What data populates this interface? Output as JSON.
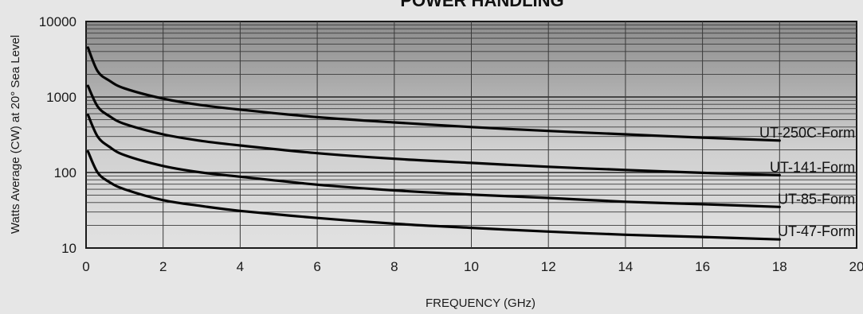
{
  "chart_data": {
    "type": "line",
    "title": "POWER HANDLING",
    "xlabel": "FREQUENCY (GHz)",
    "ylabel": "Watts Average (CW) at 20° Sea Level",
    "xlim": [
      0,
      20
    ],
    "ylim": [
      10,
      10000
    ],
    "yscale": "log",
    "x_ticks": [
      0,
      2,
      4,
      6,
      8,
      10,
      12,
      14,
      16,
      18,
      20
    ],
    "y_ticks": [
      10,
      100,
      1000,
      10000
    ],
    "grid": true,
    "series": [
      {
        "name": "UT-250C-Form",
        "x": [
          0.05,
          0.3,
          0.6,
          1,
          2,
          3,
          4,
          6,
          8,
          10,
          12,
          14,
          16,
          18
        ],
        "y": [
          4500,
          2200,
          1650,
          1300,
          950,
          780,
          680,
          540,
          460,
          400,
          355,
          320,
          290,
          265
        ]
      },
      {
        "name": "UT-141-Form",
        "x": [
          0.05,
          0.3,
          0.6,
          1,
          2,
          3,
          4,
          6,
          8,
          10,
          12,
          14,
          16,
          18
        ],
        "y": [
          1400,
          750,
          560,
          440,
          320,
          262,
          228,
          180,
          152,
          134,
          119,
          108,
          99,
          92
        ]
      },
      {
        "name": "UT-85-Form",
        "x": [
          0.05,
          0.3,
          0.6,
          1,
          2,
          3,
          4,
          6,
          8,
          10,
          12,
          14,
          16,
          18
        ],
        "y": [
          580,
          300,
          220,
          170,
          122,
          100,
          88,
          69,
          58,
          51,
          46,
          41,
          38,
          35
        ]
      },
      {
        "name": "UT-47-Form",
        "x": [
          0.05,
          0.3,
          0.6,
          1,
          2,
          3,
          4,
          6,
          8,
          10,
          12,
          14,
          16,
          18
        ],
        "y": [
          190,
          100,
          75,
          60,
          43,
          36,
          31,
          25,
          21,
          18.5,
          16.5,
          15,
          14,
          13
        ]
      }
    ]
  }
}
